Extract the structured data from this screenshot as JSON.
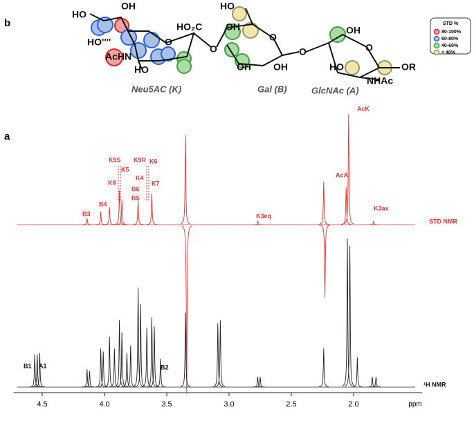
{
  "panel_a": "a",
  "panel_b": "b",
  "structure": {
    "labels": [
      "HO",
      "OH",
      "HO''''",
      "HO₂C",
      "O",
      "AcHN",
      "HO",
      "O",
      "HO",
      "OH",
      "O",
      "O",
      "OH",
      "OH",
      "OH",
      "O",
      "HO",
      "OR",
      "NHAc",
      "Neu5AC (K)",
      "Gal (B)",
      "GlcNAc (A)"
    ]
  },
  "legend": {
    "title": "STD %",
    "entries": [
      {
        "label": "80-100%",
        "color": "#e02525",
        "fill": "#f4a3a3"
      },
      {
        "label": "60-80%",
        "color": "#2a62cf",
        "fill": "#a9c0ea"
      },
      {
        "label": "40-60%",
        "color": "#3aa044",
        "fill": "#acdca4"
      },
      {
        "label": "< 40%",
        "color": "#9a9260",
        "fill": "#f2e6aa"
      }
    ]
  },
  "chart_data": {
    "type": "nmr",
    "xlabel": "ppm",
    "xlim": [
      4.73,
      1.45
    ],
    "xticks": [
      4.5,
      {
        "value": 4,
        "label": "4.0"
      },
      3.5,
      {
        "value": 3,
        "label": "3.0"
      },
      2.5,
      {
        "value": 2,
        "label": "2.0"
      }
    ],
    "annotations": [
      "K9S",
      "K5",
      "K8",
      "K9R",
      "K4",
      "K6",
      "K7",
      "B6",
      "B5",
      "B4",
      "B3",
      "K3eq",
      "AcA",
      "AcK",
      "K3ax",
      "B1",
      "A1",
      "B2"
    ],
    "series": [
      {
        "name": "STD NMR",
        "color": "#e8322f",
        "x": [
          4.14,
          4.03,
          3.96,
          3.88,
          3.86,
          3.73,
          3.62,
          3.35,
          3.34,
          2.77,
          2.24,
          2.23,
          2.06,
          2.04,
          1.84
        ],
        "values": [
          6,
          12,
          16,
          31,
          22,
          22,
          28,
          81,
          -153,
          3,
          39,
          -66,
          34,
          100,
          3
        ]
      },
      {
        "name": "¹H NMR",
        "color": "#222222",
        "x": [
          4.56,
          4.54,
          4.52,
          4.14,
          4.12,
          4.03,
          4.01,
          3.96,
          3.92,
          3.88,
          3.86,
          3.82,
          3.79,
          3.73,
          3.71,
          3.66,
          3.62,
          3.6,
          3.55,
          3.35,
          3.09,
          3.07,
          2.77,
          2.75,
          2.24,
          2.05,
          2.03,
          1.97,
          1.85,
          1.82
        ],
        "values": [
          22,
          22,
          23,
          12,
          11,
          26,
          24,
          34,
          26,
          45,
          37,
          23,
          28,
          67,
          56,
          40,
          47,
          41,
          19,
          50,
          43,
          45,
          7,
          7,
          26,
          100,
          95,
          20,
          7,
          7
        ]
      }
    ]
  }
}
